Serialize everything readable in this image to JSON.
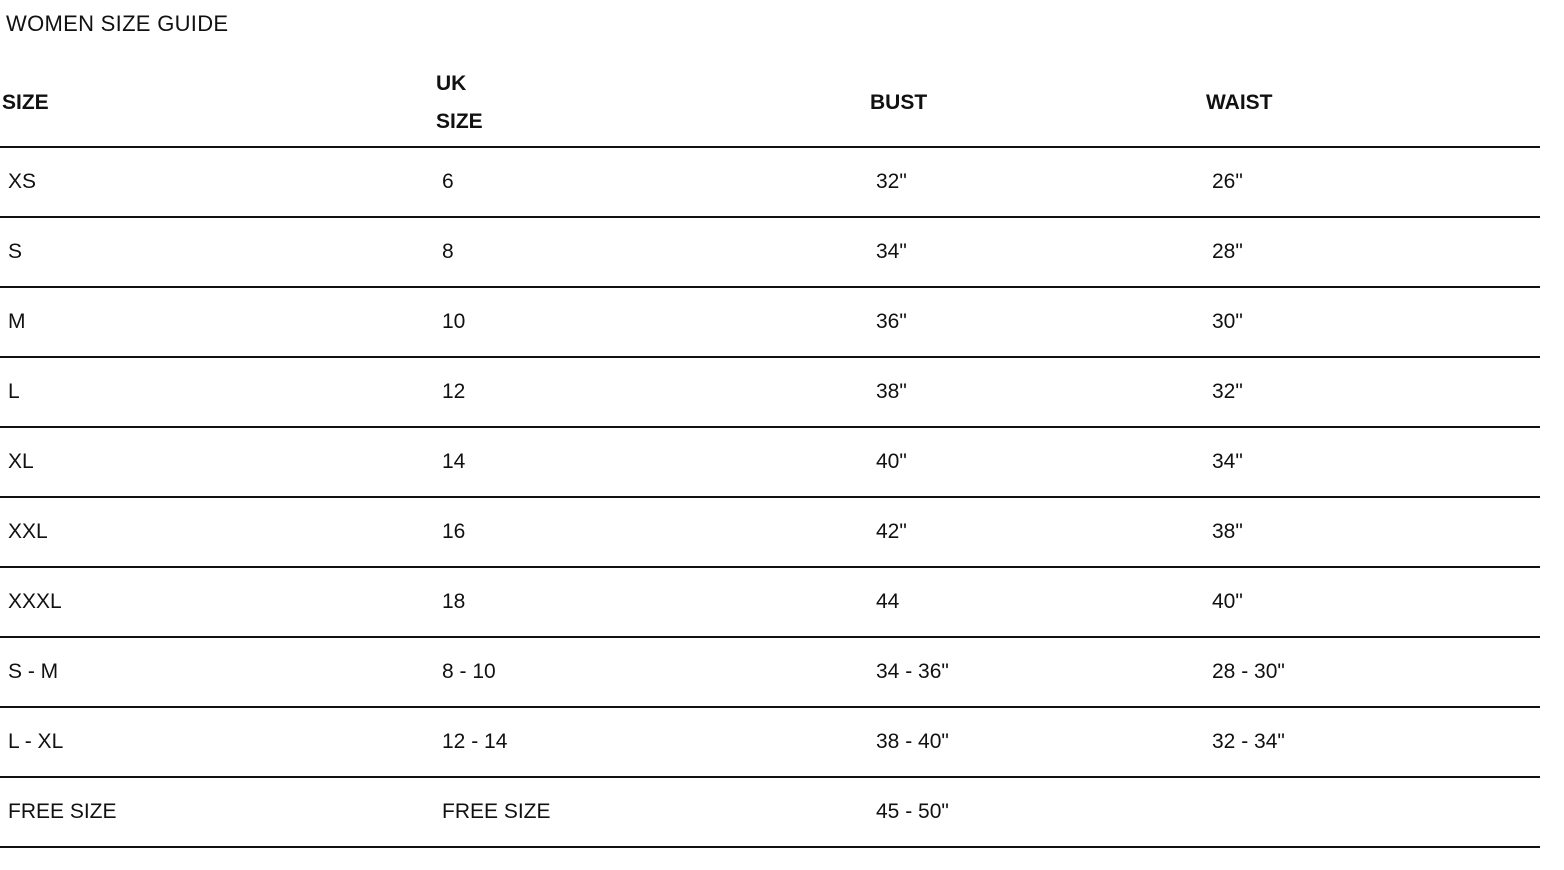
{
  "title": "WOMEN SIZE GUIDE",
  "table": {
    "headers": [
      "SIZE",
      "UK SIZE",
      "BUST",
      "WAIST"
    ],
    "rows": [
      [
        "XS",
        "6",
        "32\"",
        "26\""
      ],
      [
        "S",
        "8",
        "34\"",
        "28\""
      ],
      [
        "M",
        "10",
        "36\"",
        "30\""
      ],
      [
        "L",
        "12",
        "38\"",
        "32\""
      ],
      [
        "XL",
        "14",
        "40\"",
        "34\""
      ],
      [
        "XXL",
        "16",
        "42\"",
        "38\""
      ],
      [
        "XXXL",
        "18",
        "44",
        "40\""
      ],
      [
        "S - M",
        "8 - 10",
        "34 - 36\"",
        "28 - 30\""
      ],
      [
        "L - XL",
        "12 - 14",
        "38 - 40\"",
        "32 - 34\""
      ],
      [
        "FREE SIZE",
        "FREE SIZE",
        "45 - 50\"",
        ""
      ]
    ]
  }
}
